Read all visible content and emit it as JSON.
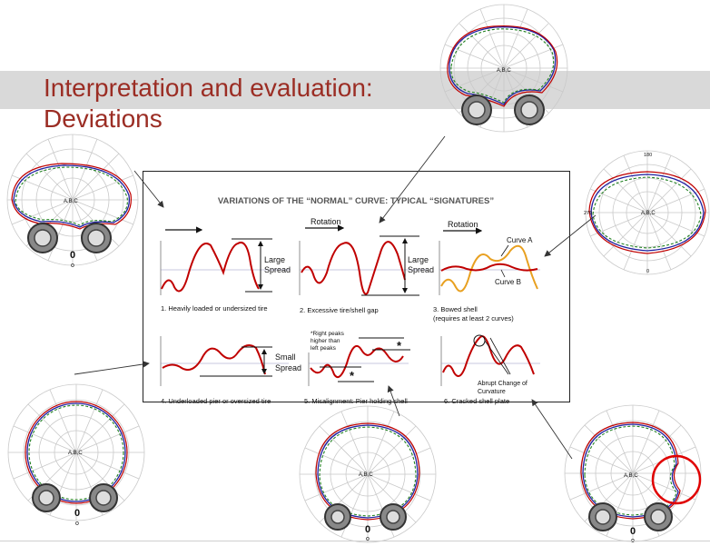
{
  "slide": {
    "title_line1": "Interpretation and evaluation:",
    "title_line2": "Deviations"
  },
  "chart_header": "VARIATIONS OF THE “NORMAL” CURVE: TYPICAL “SIGNATURES”",
  "panels": {
    "p1": {
      "caption": "1. Heavily loaded or undersized tire",
      "annot1": "Large",
      "annot2": "Spread"
    },
    "p2": {
      "caption": "2. Excessive tire/shell gap",
      "top": "Rotation",
      "annot1": "Large",
      "annot2": "Spread"
    },
    "p3": {
      "caption1": "3. Bowed shell",
      "caption2": "(requires at least 2 curves)",
      "top": "Rotation",
      "curve_a": "Curve A",
      "curve_b": "Curve B"
    },
    "p4": {
      "caption": "4. Underloaded pier or oversized tire",
      "annot1": "Small",
      "annot2": "Spread"
    },
    "p5": {
      "caption": "5. Misalignment: Pier holding shell",
      "note1": "*Right peaks",
      "note2": "higher than",
      "note3": "left peaks",
      "star": "*"
    },
    "p6": {
      "caption": "6. Cracked shell plate",
      "annot1": "Abrupt Change of",
      "annot2": "Curvature"
    }
  },
  "polar": {
    "center_label": "A,B,C",
    "zero_label": "0",
    "degree_label": "o",
    "label_180": "180",
    "label_270": "270",
    "label_0": "0"
  },
  "colors": {
    "title": "#9b2d24",
    "curve_red": "#c00000",
    "curve_orange": "#e8a020",
    "grid": "#c9c9c9",
    "band": "#d9d9d9",
    "highlight": "#e00000"
  }
}
